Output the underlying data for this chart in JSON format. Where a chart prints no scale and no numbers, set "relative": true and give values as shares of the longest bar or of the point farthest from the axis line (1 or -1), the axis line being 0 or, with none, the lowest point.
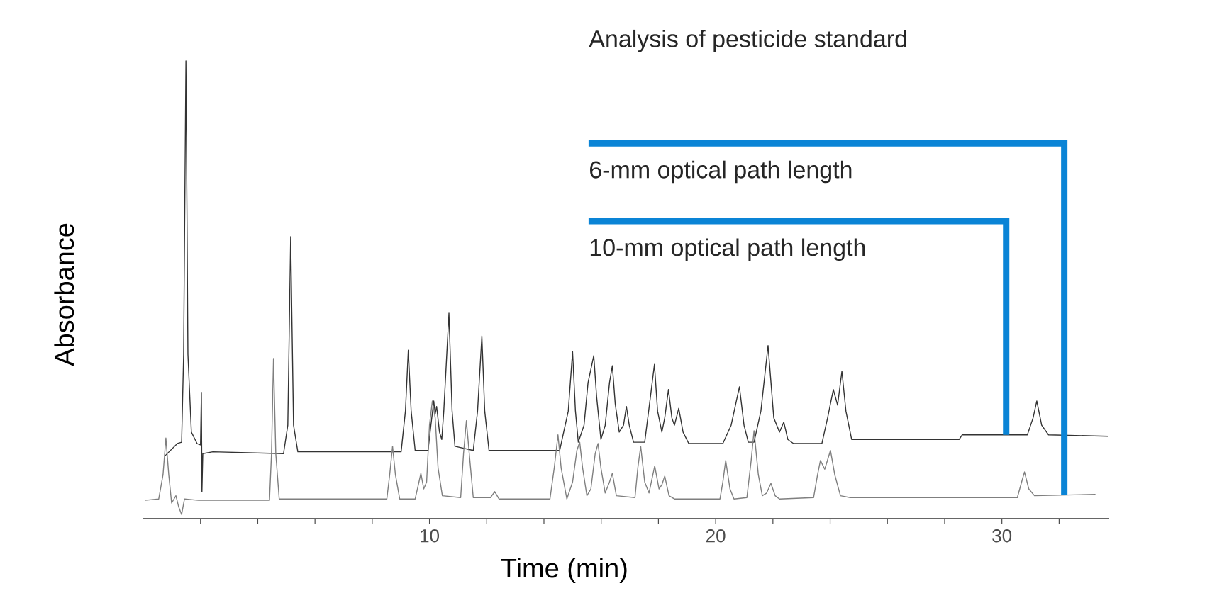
{
  "chart_data": {
    "type": "line",
    "title": "Analysis of pesticide standard",
    "xlabel": "Time (min)",
    "ylabel": "Absorbance",
    "relative": true,
    "xlim": [
      0,
      33.75
    ],
    "xticks": [
      {
        "value": 2,
        "label": null
      },
      {
        "value": 4,
        "label": null
      },
      {
        "value": 6,
        "label": null
      },
      {
        "value": 8,
        "label": null
      },
      10,
      {
        "value": 12,
        "label": null
      },
      {
        "value": 14,
        "label": null
      },
      {
        "value": 16,
        "label": null
      },
      {
        "value": 18,
        "label": null
      },
      20,
      {
        "value": 22,
        "label": null
      },
      {
        "value": 24,
        "label": null
      },
      {
        "value": 26,
        "label": null
      },
      {
        "value": 28,
        "label": null
      },
      30,
      {
        "value": 32,
        "label": null
      }
    ],
    "annotations": [
      {
        "text": "6-mm optical path length",
        "x": 32.18,
        "y": 0.051
      },
      {
        "text": "10-mm optical path length",
        "x": 30.15,
        "y": 0.183
      }
    ],
    "series": [
      {
        "color": "#333333",
        "x": [
          0.74,
          1.19,
          1.34,
          1.41,
          1.49,
          1.56,
          1.68,
          1.88,
          2.0,
          2.03,
          2.05,
          2.08,
          2.43,
          4.9,
          5.05,
          5.15,
          5.25,
          5.4,
          9.01,
          9.16,
          9.26,
          9.36,
          9.5,
          9.95,
          10.05,
          10.15,
          10.2,
          10.25,
          10.35,
          10.43,
          10.5,
          10.68,
          10.79,
          10.89,
          11.53,
          11.68,
          11.83,
          11.93,
          12.08,
          14.55,
          14.85,
          15.0,
          15.1,
          15.2,
          15.4,
          15.54,
          15.74,
          15.84,
          15.99,
          16.14,
          16.29,
          16.39,
          16.49,
          16.63,
          16.78,
          16.88,
          16.98,
          17.13,
          17.52,
          17.72,
          17.86,
          17.97,
          18.12,
          18.22,
          18.35,
          18.47,
          18.56,
          18.71,
          18.86,
          19.06,
          20.25,
          20.54,
          20.83,
          20.99,
          21.14,
          21.34,
          21.58,
          21.83,
          22.03,
          22.23,
          22.38,
          22.52,
          22.72,
          23.71,
          23.91,
          24.11,
          24.26,
          24.41,
          24.55,
          24.75,
          28.51,
          28.61,
          30.89,
          31.09,
          31.22,
          31.39,
          31.63,
          33.71
        ],
        "values": [
          0.136,
          0.164,
          0.167,
          0.359,
          1.0,
          0.359,
          0.189,
          0.164,
          0.161,
          0.276,
          0.059,
          0.142,
          0.146,
          0.142,
          0.204,
          0.616,
          0.204,
          0.146,
          0.146,
          0.235,
          0.368,
          0.235,
          0.149,
          0.149,
          0.204,
          0.257,
          0.229,
          0.245,
          0.189,
          0.173,
          0.235,
          0.449,
          0.235,
          0.158,
          0.149,
          0.235,
          0.399,
          0.235,
          0.149,
          0.149,
          0.235,
          0.365,
          0.235,
          0.167,
          0.204,
          0.297,
          0.356,
          0.266,
          0.173,
          0.204,
          0.297,
          0.334,
          0.251,
          0.189,
          0.204,
          0.245,
          0.204,
          0.167,
          0.167,
          0.266,
          0.337,
          0.235,
          0.189,
          0.22,
          0.282,
          0.22,
          0.204,
          0.241,
          0.189,
          0.164,
          0.164,
          0.204,
          0.288,
          0.204,
          0.167,
          0.167,
          0.235,
          0.378,
          0.22,
          0.189,
          0.211,
          0.173,
          0.164,
          0.164,
          0.22,
          0.282,
          0.248,
          0.322,
          0.235,
          0.173,
          0.173,
          0.183,
          0.183,
          0.22,
          0.257,
          0.204,
          0.183,
          0.18
        ]
      },
      {
        "color": "#7f7f7f",
        "x": [
          0.05,
          0.54,
          0.69,
          0.79,
          0.89,
          0.99,
          1.14,
          1.24,
          1.34,
          1.44,
          1.93,
          4.41,
          4.48,
          4.55,
          4.63,
          4.75,
          8.51,
          8.61,
          8.71,
          8.81,
          8.96,
          9.5,
          9.6,
          9.7,
          9.8,
          9.9,
          10.0,
          10.1,
          10.2,
          10.3,
          10.45,
          11.09,
          11.19,
          11.29,
          11.39,
          11.53,
          12.13,
          12.28,
          12.43,
          14.21,
          14.36,
          14.49,
          14.6,
          14.8,
          15.0,
          15.15,
          15.25,
          15.35,
          15.5,
          15.64,
          15.79,
          15.89,
          15.99,
          16.14,
          16.29,
          16.39,
          16.53,
          17.18,
          17.28,
          17.38,
          17.52,
          17.67,
          17.87,
          18.02,
          18.12,
          18.22,
          18.37,
          18.56,
          20.15,
          20.25,
          20.35,
          20.5,
          20.64,
          21.09,
          21.24,
          21.34,
          21.49,
          21.63,
          21.78,
          21.93,
          22.08,
          22.23,
          23.42,
          23.56,
          23.66,
          23.81,
          24.01,
          24.16,
          24.36,
          24.7,
          30.54,
          30.69,
          30.79,
          30.94,
          31.14,
          33.27
        ],
        "values": [
          0.04,
          0.043,
          0.096,
          0.176,
          0.096,
          0.034,
          0.05,
          0.025,
          0.009,
          0.043,
          0.04,
          0.04,
          0.142,
          0.35,
          0.142,
          0.043,
          0.043,
          0.096,
          0.158,
          0.096,
          0.043,
          0.043,
          0.071,
          0.099,
          0.065,
          0.08,
          0.204,
          0.257,
          0.22,
          0.111,
          0.05,
          0.046,
          0.142,
          0.214,
          0.142,
          0.046,
          0.046,
          0.059,
          0.043,
          0.043,
          0.111,
          0.183,
          0.111,
          0.043,
          0.08,
          0.149,
          0.167,
          0.111,
          0.05,
          0.065,
          0.142,
          0.164,
          0.111,
          0.056,
          0.08,
          0.099,
          0.05,
          0.046,
          0.111,
          0.158,
          0.08,
          0.056,
          0.115,
          0.065,
          0.074,
          0.093,
          0.05,
          0.043,
          0.043,
          0.08,
          0.127,
          0.065,
          0.043,
          0.046,
          0.127,
          0.192,
          0.096,
          0.05,
          0.056,
          0.077,
          0.05,
          0.043,
          0.046,
          0.096,
          0.127,
          0.108,
          0.149,
          0.096,
          0.05,
          0.046,
          0.046,
          0.08,
          0.102,
          0.065,
          0.05,
          0.053
        ]
      }
    ]
  }
}
